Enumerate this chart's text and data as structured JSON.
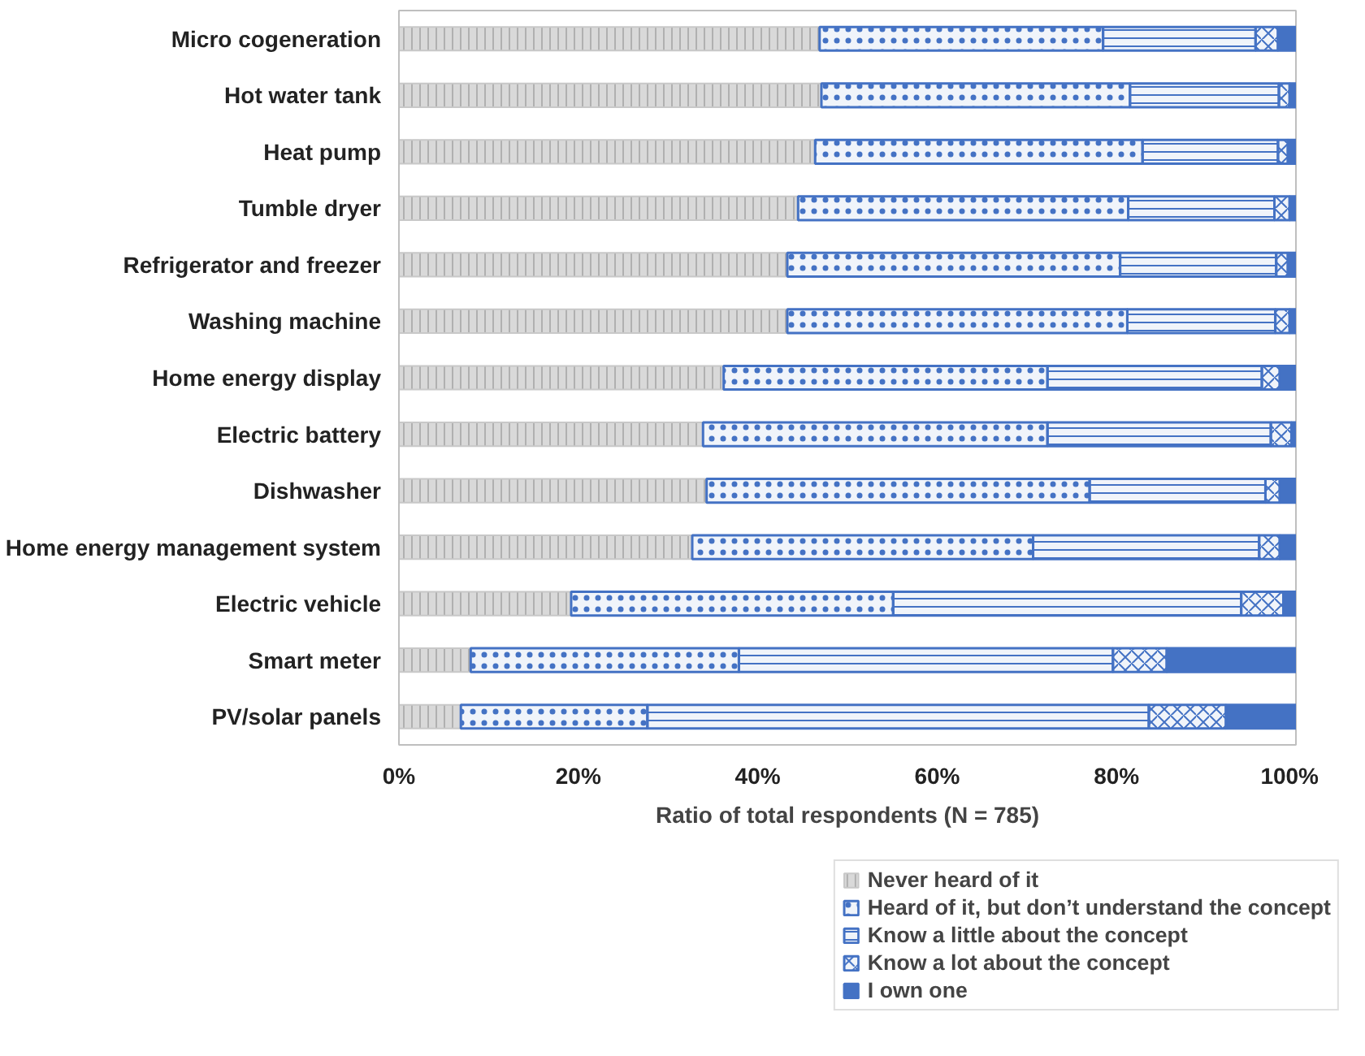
{
  "chart_data": {
    "type": "bar",
    "orientation": "horizontal",
    "stacked": true,
    "xlabel": "Ratio of total respondents (N = 785)",
    "categories": [
      "Micro cogeneration",
      "Hot water tank",
      "Heat pump",
      "Tumble dryer",
      "Refrigerator and freezer",
      "Washing machine",
      "Home energy display",
      "Electric battery",
      "Dishwasher",
      "Home energy management system",
      "Electric vehicle",
      "Smart meter",
      "PV/solar panels"
    ],
    "series": [
      {
        "name": "Never heard of it",
        "color": "#d9d9d9",
        "values": [
          46.9,
          47.1,
          46.4,
          44.5,
          43.3,
          43.3,
          36.2,
          33.9,
          34.3,
          32.7,
          19.2,
          8.0,
          6.9
        ]
      },
      {
        "name": "Heard of it, but don’t understand the concept",
        "color": "#4472c4",
        "values": [
          31.6,
          34.4,
          36.5,
          36.8,
          37.1,
          37.9,
          36.1,
          38.4,
          42.7,
          38.0,
          35.9,
          29.9,
          20.8
        ]
      },
      {
        "name": "Know a little about the concept",
        "color": "#4472c4",
        "values": [
          17.0,
          16.6,
          15.1,
          16.3,
          17.4,
          16.5,
          23.9,
          24.9,
          19.6,
          25.2,
          38.8,
          41.7,
          55.9
        ]
      },
      {
        "name": "Know a lot about the concept",
        "color": "#4472c4",
        "values": [
          2.5,
          1.2,
          1.1,
          1.7,
          1.3,
          1.6,
          2.0,
          2.3,
          1.6,
          2.3,
          4.7,
          6.0,
          8.6
        ]
      },
      {
        "name": "I own one",
        "color": "#4472c4",
        "values": [
          2.0,
          0.7,
          0.9,
          0.7,
          0.9,
          0.7,
          1.8,
          0.5,
          1.8,
          1.8,
          1.4,
          14.4,
          7.8
        ]
      }
    ],
    "xlim": [
      0,
      100
    ],
    "xticks": [
      {
        "value": 0,
        "label": "0%"
      },
      {
        "value": 20,
        "label": "20%"
      },
      {
        "value": 40,
        "label": "40%"
      },
      {
        "value": 60,
        "label": "60%"
      },
      {
        "value": 80,
        "label": "80%"
      },
      {
        "value": 100,
        "label": "100%"
      }
    ],
    "grid": false,
    "legend": "bottom right"
  }
}
